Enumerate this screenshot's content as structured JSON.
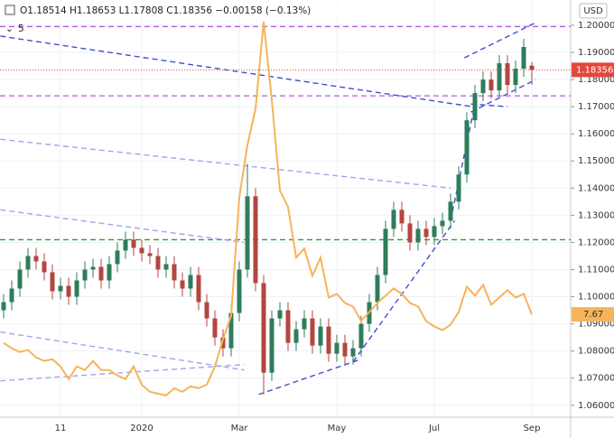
{
  "chart_data": {
    "type": "candlestick",
    "currency_label": "USD",
    "ohlc_legend": "O1.18514 H1.18653 L1.17808 C1.18356 −0.00158 (−0.13%)",
    "indicator_label": "5",
    "categories": [
      null,
      null,
      null,
      null,
      null,
      null,
      null,
      "11",
      null,
      null,
      null,
      null,
      null,
      null,
      null,
      null,
      null,
      "2020",
      null,
      null,
      null,
      null,
      null,
      null,
      null,
      null,
      null,
      null,
      null,
      "Mar",
      null,
      null,
      null,
      null,
      null,
      null,
      null,
      null,
      null,
      null,
      null,
      "May",
      null,
      null,
      null,
      null,
      null,
      null,
      null,
      null,
      null,
      null,
      null,
      "Jul",
      null,
      null,
      null,
      null,
      null,
      null,
      null,
      null,
      null,
      null,
      null,
      "Sep"
    ],
    "open": [
      1.095,
      1.098,
      1.103,
      1.11,
      1.115,
      1.113,
      1.109,
      1.102,
      1.104,
      1.1,
      1.106,
      1.11,
      1.111,
      1.106,
      1.112,
      1.117,
      1.121,
      1.118,
      1.116,
      1.115,
      1.11,
      1.112,
      1.106,
      1.103,
      1.108,
      1.098,
      1.092,
      1.085,
      1.081,
      1.094,
      1.11,
      1.137,
      1.105,
      1.072,
      1.092,
      1.095,
      1.083,
      1.088,
      1.092,
      1.082,
      1.089,
      1.079,
      1.083,
      1.078,
      1.081,
      1.09,
      1.098,
      1.108,
      1.125,
      1.132,
      1.127,
      1.12,
      1.125,
      1.122,
      1.126,
      1.128,
      1.135,
      1.145,
      1.165,
      1.175,
      1.18,
      1.176,
      1.186,
      1.178,
      1.184,
      1.18514
    ],
    "high": [
      1.101,
      1.106,
      1.113,
      1.118,
      1.118,
      1.116,
      1.112,
      1.107,
      1.107,
      1.109,
      1.113,
      1.114,
      1.114,
      1.115,
      1.12,
      1.124,
      1.124,
      1.121,
      1.119,
      1.118,
      1.115,
      1.115,
      1.109,
      1.111,
      1.111,
      1.101,
      1.095,
      1.088,
      1.097,
      1.113,
      1.149,
      1.14,
      1.108,
      1.095,
      1.098,
      1.098,
      1.091,
      1.095,
      1.095,
      1.092,
      1.092,
      1.086,
      1.086,
      1.084,
      1.093,
      1.101,
      1.111,
      1.128,
      1.135,
      1.135,
      1.13,
      1.128,
      1.128,
      1.129,
      1.131,
      1.138,
      1.148,
      1.168,
      1.178,
      1.183,
      1.183,
      1.189,
      1.189,
      1.187,
      1.195,
      1.18653
    ],
    "low": [
      1.092,
      1.095,
      1.1,
      1.107,
      1.11,
      1.106,
      1.099,
      1.099,
      1.097,
      1.097,
      1.103,
      1.107,
      1.103,
      1.103,
      1.109,
      1.114,
      1.115,
      1.113,
      1.112,
      1.107,
      1.107,
      1.103,
      1.1,
      1.1,
      1.095,
      1.089,
      1.082,
      1.078,
      1.078,
      1.091,
      1.107,
      1.102,
      1.064,
      1.069,
      1.089,
      1.08,
      1.08,
      1.085,
      1.079,
      1.079,
      1.076,
      1.076,
      1.075,
      1.075,
      1.078,
      1.087,
      1.095,
      1.105,
      1.122,
      1.124,
      1.117,
      1.117,
      1.119,
      1.119,
      1.123,
      1.125,
      1.132,
      1.142,
      1.162,
      1.172,
      1.173,
      1.173,
      1.175,
      1.175,
      1.181,
      1.17808
    ],
    "close": [
      1.098,
      1.103,
      1.11,
      1.115,
      1.113,
      1.109,
      1.102,
      1.104,
      1.1,
      1.106,
      1.11,
      1.111,
      1.106,
      1.112,
      1.117,
      1.121,
      1.118,
      1.116,
      1.115,
      1.11,
      1.112,
      1.106,
      1.103,
      1.108,
      1.098,
      1.092,
      1.085,
      1.081,
      1.094,
      1.11,
      1.137,
      1.105,
      1.072,
      1.092,
      1.095,
      1.083,
      1.088,
      1.092,
      1.082,
      1.089,
      1.079,
      1.083,
      1.078,
      1.081,
      1.09,
      1.098,
      1.108,
      1.125,
      1.132,
      1.127,
      1.12,
      1.125,
      1.122,
      1.126,
      1.128,
      1.135,
      1.145,
      1.165,
      1.175,
      1.18,
      1.176,
      1.186,
      1.178,
      1.184,
      1.192,
      1.18356
    ],
    "up_color": "#2e7d5b",
    "down_color": "#b3463f",
    "last_price_color": "#e0483d",
    "overlay": {
      "color": "#f7b35a",
      "axis": "y2",
      "values": [
        6.1,
        5.8,
        5.6,
        5.7,
        5.3,
        5.1,
        5.2,
        4.8,
        4.1,
        4.8,
        4.6,
        5.1,
        4.6,
        4.6,
        4.3,
        4.1,
        4.8,
        3.8,
        3.4,
        3.3,
        3.2,
        3.6,
        3.4,
        3.7,
        3.6,
        3.8,
        4.8,
        6.3,
        7.6,
        14.1,
        17.0,
        19.0,
        23.8,
        19.5,
        14.5,
        13.6,
        10.8,
        11.3,
        9.8,
        10.8,
        8.6,
        8.8,
        8.3,
        8.1,
        7.3,
        7.8,
        8.3,
        8.7,
        9.1,
        8.8,
        8.3,
        8.1,
        7.3,
        7.0,
        6.8,
        7.1,
        7.8,
        9.2,
        8.7,
        9.3,
        8.2,
        8.6,
        9.0,
        8.6,
        8.8,
        7.67
      ]
    },
    "ylim": [
      1.0556,
      1.2093
    ],
    "y2lim": [
      2,
      25
    ],
    "yticks": [
      {
        "value": 1.06,
        "label": "1.06000"
      },
      {
        "value": 1.07,
        "label": "1.07000"
      },
      {
        "value": 1.08,
        "label": "1.08000"
      },
      {
        "value": 1.09,
        "label": "1.09000"
      },
      {
        "value": 1.1,
        "label": "1.10000"
      },
      {
        "value": 1.11,
        "label": "1.11000"
      },
      {
        "value": 1.12,
        "label": "1.12000"
      },
      {
        "value": 1.13,
        "label": "1.13000"
      },
      {
        "value": 1.14,
        "label": "1.14000"
      },
      {
        "value": 1.15,
        "label": "1.15000"
      },
      {
        "value": 1.16,
        "label": "1.16000"
      },
      {
        "value": 1.17,
        "label": "1.17000"
      },
      {
        "value": 1.18,
        "label": "1.18000"
      },
      {
        "value": 1.19,
        "label": "1.19000"
      },
      {
        "value": 1.2,
        "label": "1.20000"
      }
    ],
    "grid": true,
    "hlines": [
      {
        "value": 1.1995,
        "color": "#b05fd8"
      },
      {
        "value": 1.174,
        "color": "#b05fd8"
      },
      {
        "value": 1.121,
        "color": "#2ca02c"
      }
    ],
    "trendlines": [
      {
        "x": [
          -0.4,
          57.7
        ],
        "y": [
          1.196,
          1.17
        ],
        "color": "#3f4fd0"
      },
      {
        "x": [
          31.4,
          44
        ],
        "y": [
          1.064,
          1.077
        ],
        "color": "#3f4fd0"
      },
      {
        "x": [
          43,
          55.5
        ],
        "y": [
          1.076,
          1.128
        ],
        "color": "#3f4fd0"
      },
      {
        "x": [
          55,
          58
        ],
        "y": [
          1.128,
          1.171
        ],
        "color": "#3f4fd0"
      },
      {
        "x": [
          57.5,
          62
        ],
        "y": [
          1.171,
          1.17
        ],
        "color": "#3f4fd0"
      },
      {
        "x": [
          56.7,
          65.5
        ],
        "y": [
          1.188,
          1.201
        ],
        "color": "#3f4fd0"
      },
      {
        "x": [
          57.5,
          65.5
        ],
        "y": [
          1.168,
          1.18
        ],
        "color": "#3f4fd0"
      },
      {
        "x": [
          -0.4,
          55
        ],
        "y": [
          1.158,
          1.14
        ],
        "color": "#a3a3f0"
      },
      {
        "x": [
          -0.4,
          29.6
        ],
        "y": [
          1.132,
          1.12
        ],
        "color": "#a3a3f0"
      },
      {
        "x": [
          -0.4,
          29.6
        ],
        "y": [
          1.087,
          1.073
        ],
        "color": "#a3a3f0"
      },
      {
        "x": [
          -0.4,
          29.6
        ],
        "y": [
          1.069,
          1.075
        ],
        "color": "#a3a3f0"
      }
    ]
  }
}
